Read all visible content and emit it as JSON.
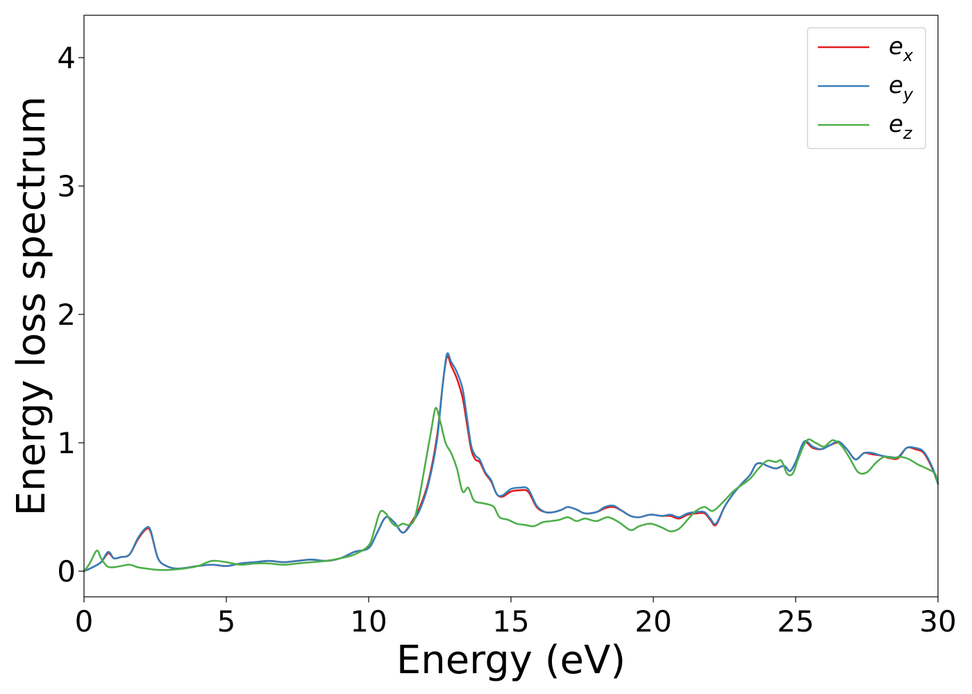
{
  "chart_data": {
    "type": "line",
    "xlabel": "Energy (eV)",
    "ylabel": "Energy loss spectrum",
    "xlim": [
      0,
      30
    ],
    "ylim": [
      -0.2,
      4.33
    ],
    "xticks": [
      0,
      5,
      10,
      15,
      20,
      25,
      30
    ],
    "yticks": [
      0,
      1,
      2,
      3,
      4
    ],
    "grid": false,
    "legend_position": "top-right",
    "series": [
      {
        "name": "e_x",
        "legend_base": "e",
        "legend_sub": "x",
        "color": "#e41a1c",
        "x": [
          0,
          0.3,
          0.6,
          0.85,
          1.05,
          1.3,
          1.6,
          1.9,
          2.2,
          2.35,
          2.6,
          2.9,
          3.3,
          4,
          4.5,
          5,
          5.5,
          6,
          6.5,
          7,
          7.5,
          8,
          8.5,
          9,
          9.5,
          10,
          10.3,
          10.6,
          10.9,
          11.2,
          11.5,
          11.8,
          12.1,
          12.4,
          12.6,
          12.75,
          12.9,
          13.1,
          13.3,
          13.45,
          13.6,
          13.75,
          13.9,
          14.1,
          14.3,
          14.5,
          14.7,
          15,
          15.3,
          15.6,
          15.9,
          16.2,
          16.5,
          16.8,
          17,
          17.3,
          17.6,
          18,
          18.3,
          18.6,
          18.9,
          19.2,
          19.5,
          19.9,
          20.3,
          20.6,
          20.9,
          21.2,
          21.5,
          21.8,
          22,
          22.2,
          22.5,
          22.8,
          23.1,
          23.4,
          23.6,
          23.8,
          24,
          24.3,
          24.6,
          24.8,
          25,
          25.3,
          25.6,
          25.9,
          26.2,
          26.5,
          26.8,
          27.1,
          27.4,
          27.7,
          28,
          28.3,
          28.6,
          28.9,
          29.2,
          29.5,
          29.8,
          30
        ],
        "values": [
          0,
          0.03,
          0.07,
          0.14,
          0.1,
          0.11,
          0.13,
          0.25,
          0.33,
          0.3,
          0.1,
          0.04,
          0.02,
          0.04,
          0.05,
          0.04,
          0.06,
          0.07,
          0.08,
          0.07,
          0.08,
          0.09,
          0.08,
          0.1,
          0.15,
          0.18,
          0.3,
          0.42,
          0.38,
          0.3,
          0.38,
          0.5,
          0.7,
          1.05,
          1.45,
          1.67,
          1.6,
          1.5,
          1.35,
          1.15,
          0.95,
          0.87,
          0.85,
          0.76,
          0.7,
          0.6,
          0.58,
          0.62,
          0.63,
          0.62,
          0.5,
          0.46,
          0.46,
          0.48,
          0.5,
          0.48,
          0.45,
          0.46,
          0.49,
          0.5,
          0.47,
          0.43,
          0.42,
          0.44,
          0.43,
          0.43,
          0.41,
          0.44,
          0.45,
          0.45,
          0.4,
          0.36,
          0.5,
          0.6,
          0.68,
          0.75,
          0.83,
          0.84,
          0.82,
          0.8,
          0.82,
          0.78,
          0.85,
          1.0,
          0.96,
          0.95,
          0.98,
          1.0,
          0.95,
          0.87,
          0.92,
          0.91,
          0.9,
          0.88,
          0.88,
          0.96,
          0.95,
          0.92,
          0.8,
          0.68
        ]
      },
      {
        "name": "e_y",
        "legend_base": "e",
        "legend_sub": "y",
        "color": "#377eb8",
        "x": [
          0,
          0.3,
          0.6,
          0.85,
          1.05,
          1.3,
          1.6,
          1.9,
          2.2,
          2.35,
          2.6,
          2.9,
          3.3,
          4,
          4.5,
          5,
          5.5,
          6,
          6.5,
          7,
          7.5,
          8,
          8.5,
          9,
          9.5,
          10,
          10.3,
          10.6,
          10.9,
          11.2,
          11.5,
          11.8,
          12.1,
          12.4,
          12.6,
          12.75,
          12.9,
          13.1,
          13.3,
          13.45,
          13.6,
          13.75,
          13.9,
          14.1,
          14.3,
          14.5,
          14.7,
          15,
          15.3,
          15.6,
          15.9,
          16.2,
          16.5,
          16.8,
          17,
          17.3,
          17.6,
          18,
          18.3,
          18.6,
          18.9,
          19.2,
          19.5,
          19.9,
          20.3,
          20.6,
          20.9,
          21.2,
          21.5,
          21.8,
          22,
          22.2,
          22.5,
          22.8,
          23.1,
          23.4,
          23.6,
          23.8,
          24,
          24.3,
          24.6,
          24.8,
          25,
          25.3,
          25.6,
          25.9,
          26.2,
          26.5,
          26.8,
          27.1,
          27.4,
          27.7,
          28,
          28.3,
          28.6,
          28.9,
          29.2,
          29.5,
          29.8,
          30
        ],
        "values": [
          0,
          0.03,
          0.07,
          0.15,
          0.1,
          0.11,
          0.13,
          0.26,
          0.34,
          0.31,
          0.1,
          0.04,
          0.02,
          0.04,
          0.05,
          0.04,
          0.06,
          0.07,
          0.08,
          0.07,
          0.08,
          0.09,
          0.08,
          0.1,
          0.15,
          0.18,
          0.3,
          0.42,
          0.38,
          0.3,
          0.37,
          0.48,
          0.68,
          1.02,
          1.45,
          1.69,
          1.63,
          1.55,
          1.42,
          1.2,
          0.98,
          0.9,
          0.87,
          0.77,
          0.71,
          0.6,
          0.59,
          0.64,
          0.65,
          0.64,
          0.51,
          0.46,
          0.46,
          0.48,
          0.5,
          0.48,
          0.45,
          0.46,
          0.5,
          0.51,
          0.47,
          0.43,
          0.42,
          0.44,
          0.43,
          0.44,
          0.42,
          0.45,
          0.46,
          0.46,
          0.41,
          0.37,
          0.5,
          0.6,
          0.68,
          0.75,
          0.83,
          0.84,
          0.82,
          0.8,
          0.82,
          0.78,
          0.85,
          1.01,
          0.97,
          0.95,
          0.98,
          1.01,
          0.95,
          0.87,
          0.92,
          0.92,
          0.9,
          0.89,
          0.89,
          0.96,
          0.96,
          0.93,
          0.81,
          0.68
        ]
      },
      {
        "name": "e_z",
        "legend_base": "e",
        "legend_sub": "z",
        "color": "#4daf4a",
        "x": [
          0,
          0.2,
          0.45,
          0.6,
          0.8,
          1.0,
          1.3,
          1.6,
          1.9,
          2.2,
          2.6,
          3,
          3.5,
          4,
          4.5,
          5,
          5.5,
          6,
          6.5,
          7,
          7.5,
          8,
          8.5,
          9,
          9.5,
          10,
          10.2,
          10.4,
          10.6,
          10.8,
          11.0,
          11.2,
          11.4,
          11.6,
          11.8,
          12.0,
          12.2,
          12.35,
          12.5,
          12.7,
          12.9,
          13.1,
          13.3,
          13.5,
          13.7,
          14.0,
          14.2,
          14.4,
          14.6,
          14.9,
          15.2,
          15.5,
          15.8,
          16.1,
          16.4,
          16.7,
          17.0,
          17.3,
          17.6,
          18.0,
          18.4,
          18.8,
          19.2,
          19.5,
          19.9,
          20.3,
          20.6,
          20.9,
          21.2,
          21.5,
          21.8,
          22.1,
          22.5,
          22.8,
          23.1,
          23.4,
          23.7,
          24.0,
          24.3,
          24.5,
          24.7,
          24.9,
          25.1,
          25.4,
          25.7,
          26.0,
          26.3,
          26.6,
          26.9,
          27.2,
          27.5,
          27.8,
          28.1,
          28.4,
          28.7,
          29.0,
          29.3,
          29.6,
          29.9,
          30
        ],
        "values": [
          0,
          0.06,
          0.16,
          0.1,
          0.04,
          0.03,
          0.04,
          0.05,
          0.03,
          0.02,
          0.01,
          0.01,
          0.02,
          0.04,
          0.08,
          0.07,
          0.05,
          0.06,
          0.06,
          0.05,
          0.06,
          0.07,
          0.08,
          0.1,
          0.13,
          0.2,
          0.32,
          0.46,
          0.45,
          0.38,
          0.35,
          0.37,
          0.36,
          0.4,
          0.6,
          0.85,
          1.1,
          1.27,
          1.18,
          1.0,
          0.92,
          0.8,
          0.62,
          0.65,
          0.55,
          0.53,
          0.52,
          0.5,
          0.42,
          0.4,
          0.37,
          0.36,
          0.35,
          0.38,
          0.39,
          0.4,
          0.42,
          0.39,
          0.41,
          0.39,
          0.42,
          0.38,
          0.32,
          0.35,
          0.37,
          0.34,
          0.31,
          0.33,
          0.4,
          0.47,
          0.5,
          0.47,
          0.55,
          0.62,
          0.67,
          0.72,
          0.8,
          0.86,
          0.85,
          0.86,
          0.76,
          0.76,
          0.88,
          1.02,
          1.0,
          0.97,
          1.02,
          0.98,
          0.88,
          0.77,
          0.77,
          0.84,
          0.89,
          0.88,
          0.89,
          0.87,
          0.83,
          0.8,
          0.76,
          0.68
        ]
      }
    ]
  }
}
